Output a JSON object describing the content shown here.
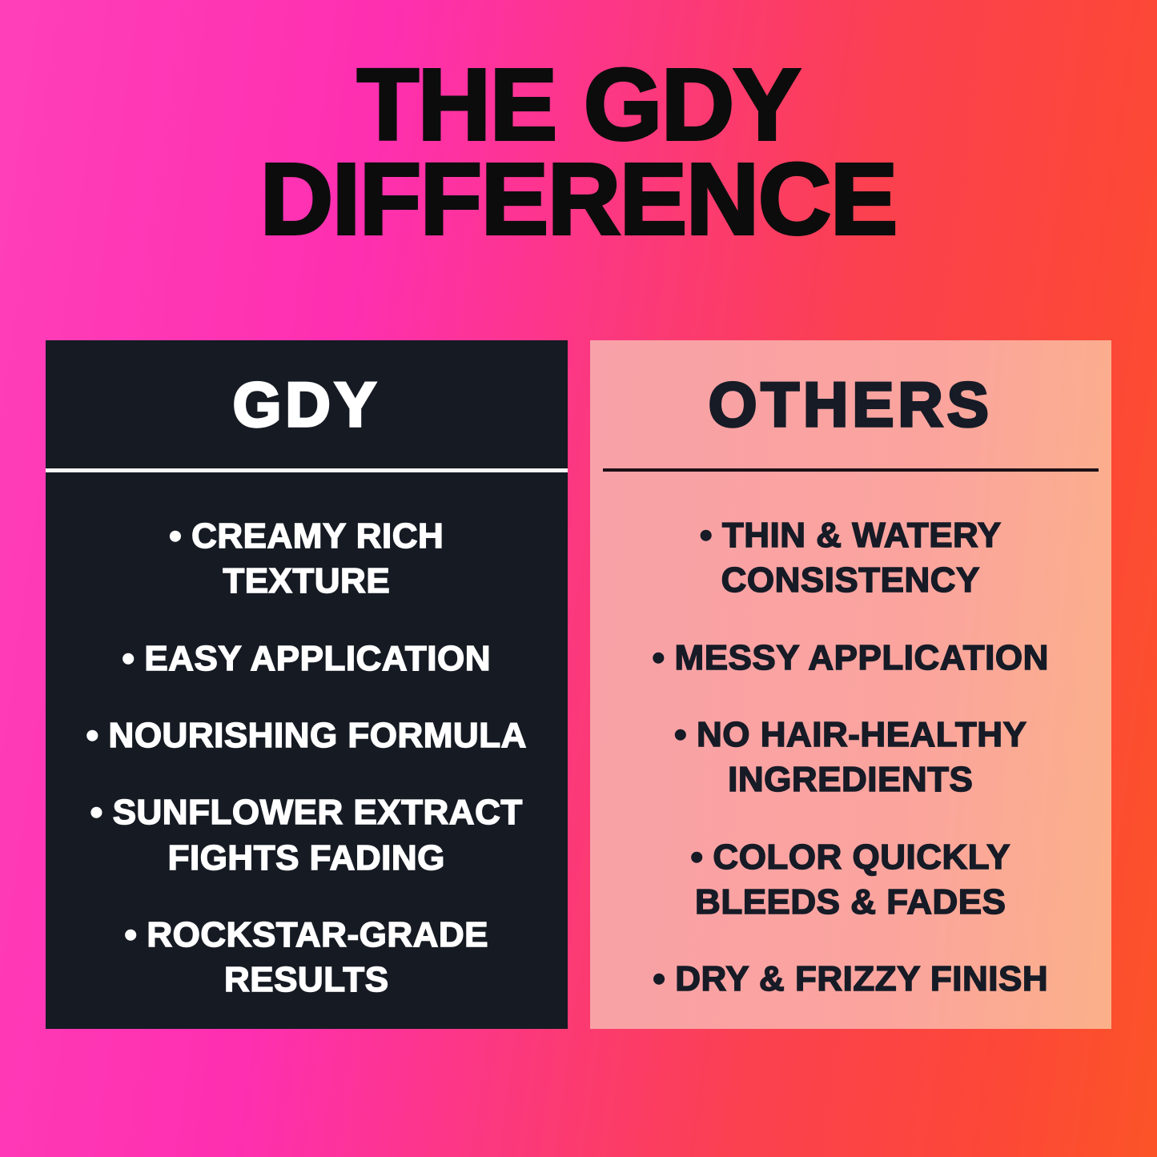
{
  "title": {
    "line1": "THE GDY",
    "line2": "DIFFERENCE"
  },
  "ui": {
    "bullet": "•"
  },
  "columns": [
    {
      "id": "gdy",
      "header": "GDY",
      "items": [
        "CREAMY RICH\nTEXTURE",
        "EASY APPLICATION",
        "NOURISHING FORMULA",
        "SUNFLOWER EXTRACT\nFIGHTS FADING",
        "ROCKSTAR-GRADE\nRESULTS"
      ]
    },
    {
      "id": "others",
      "header": "OTHERS",
      "items": [
        "THIN & WATERY\nCONSISTENCY",
        "MESSY APPLICATION",
        "NO HAIR-HEALTHY\nINGREDIENTS",
        "COLOR QUICKLY\nBLEEDS & FADES",
        "DRY & FRIZZY FINISH"
      ]
    }
  ],
  "colors": {
    "background_left": "#ff3fba",
    "background_right": "#fc5428",
    "title_text": "#0c0c0c",
    "gdy_panel": "#151a23",
    "gdy_text": "#ffffff",
    "gdy_divider": "#f5f5f3",
    "others_panel_left": "#f8a1a8",
    "others_panel_right": "#fbb089",
    "others_text": "#161b26",
    "others_divider": "#1c1016"
  }
}
